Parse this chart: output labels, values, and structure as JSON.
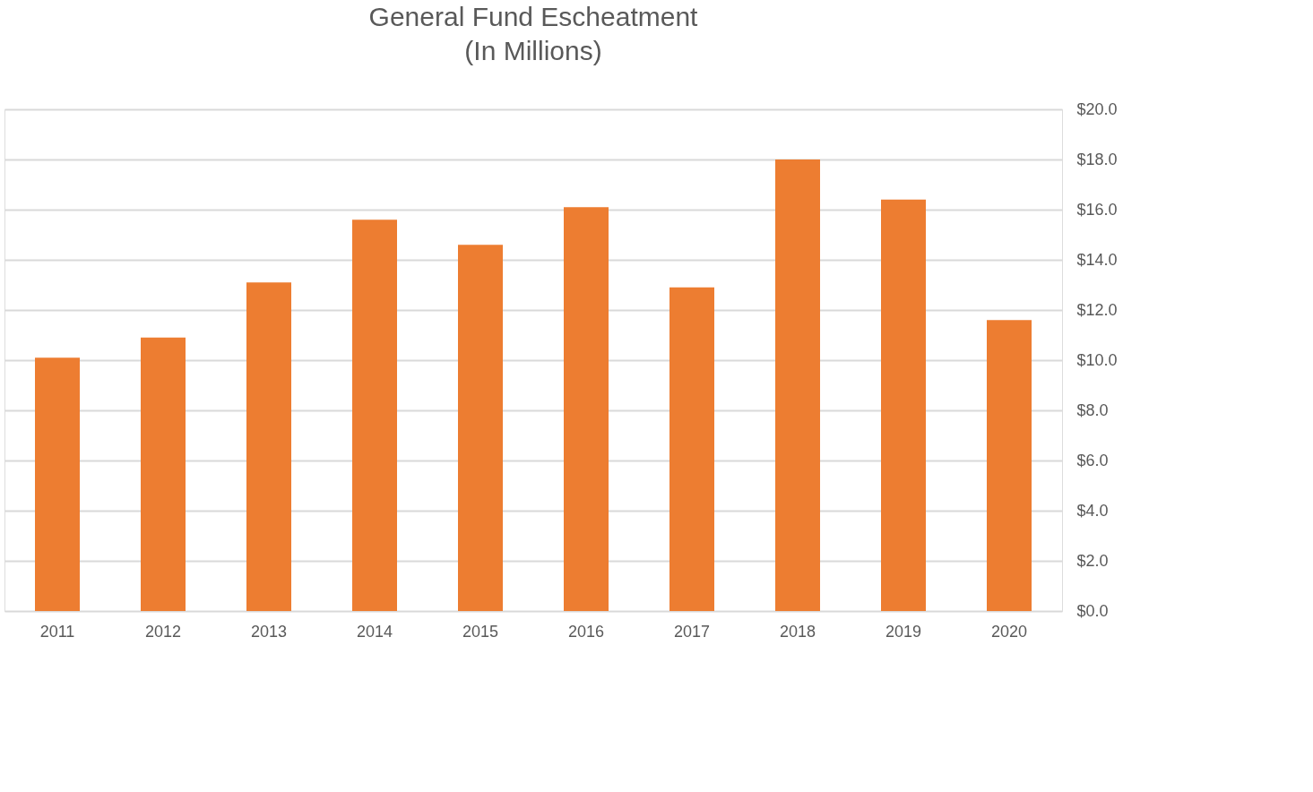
{
  "chart_data": {
    "type": "bar",
    "title": "General Fund Escheatment",
    "subtitle": "(In Millions)",
    "categories": [
      "2011",
      "2012",
      "2013",
      "2014",
      "2015",
      "2016",
      "2017",
      "2018",
      "2019",
      "2020"
    ],
    "values": [
      10.1,
      10.9,
      13.1,
      15.6,
      14.6,
      16.1,
      12.9,
      18.0,
      16.4,
      11.6
    ],
    "color": "#ed7d31",
    "ylim": [
      0,
      20
    ],
    "yticks": [
      {
        "value": 0,
        "label": "$0.0"
      },
      {
        "value": 2,
        "label": "$2.0"
      },
      {
        "value": 4,
        "label": "$4.0"
      },
      {
        "value": 6,
        "label": "$6.0"
      },
      {
        "value": 8,
        "label": "$8.0"
      },
      {
        "value": 10,
        "label": "$10.0"
      },
      {
        "value": 12,
        "label": "$12.0"
      },
      {
        "value": 14,
        "label": "$14.0"
      },
      {
        "value": 16,
        "label": "$16.0"
      },
      {
        "value": 18,
        "label": "$18.0"
      },
      {
        "value": 20,
        "label": "$20.0"
      }
    ],
    "grid": "y"
  }
}
